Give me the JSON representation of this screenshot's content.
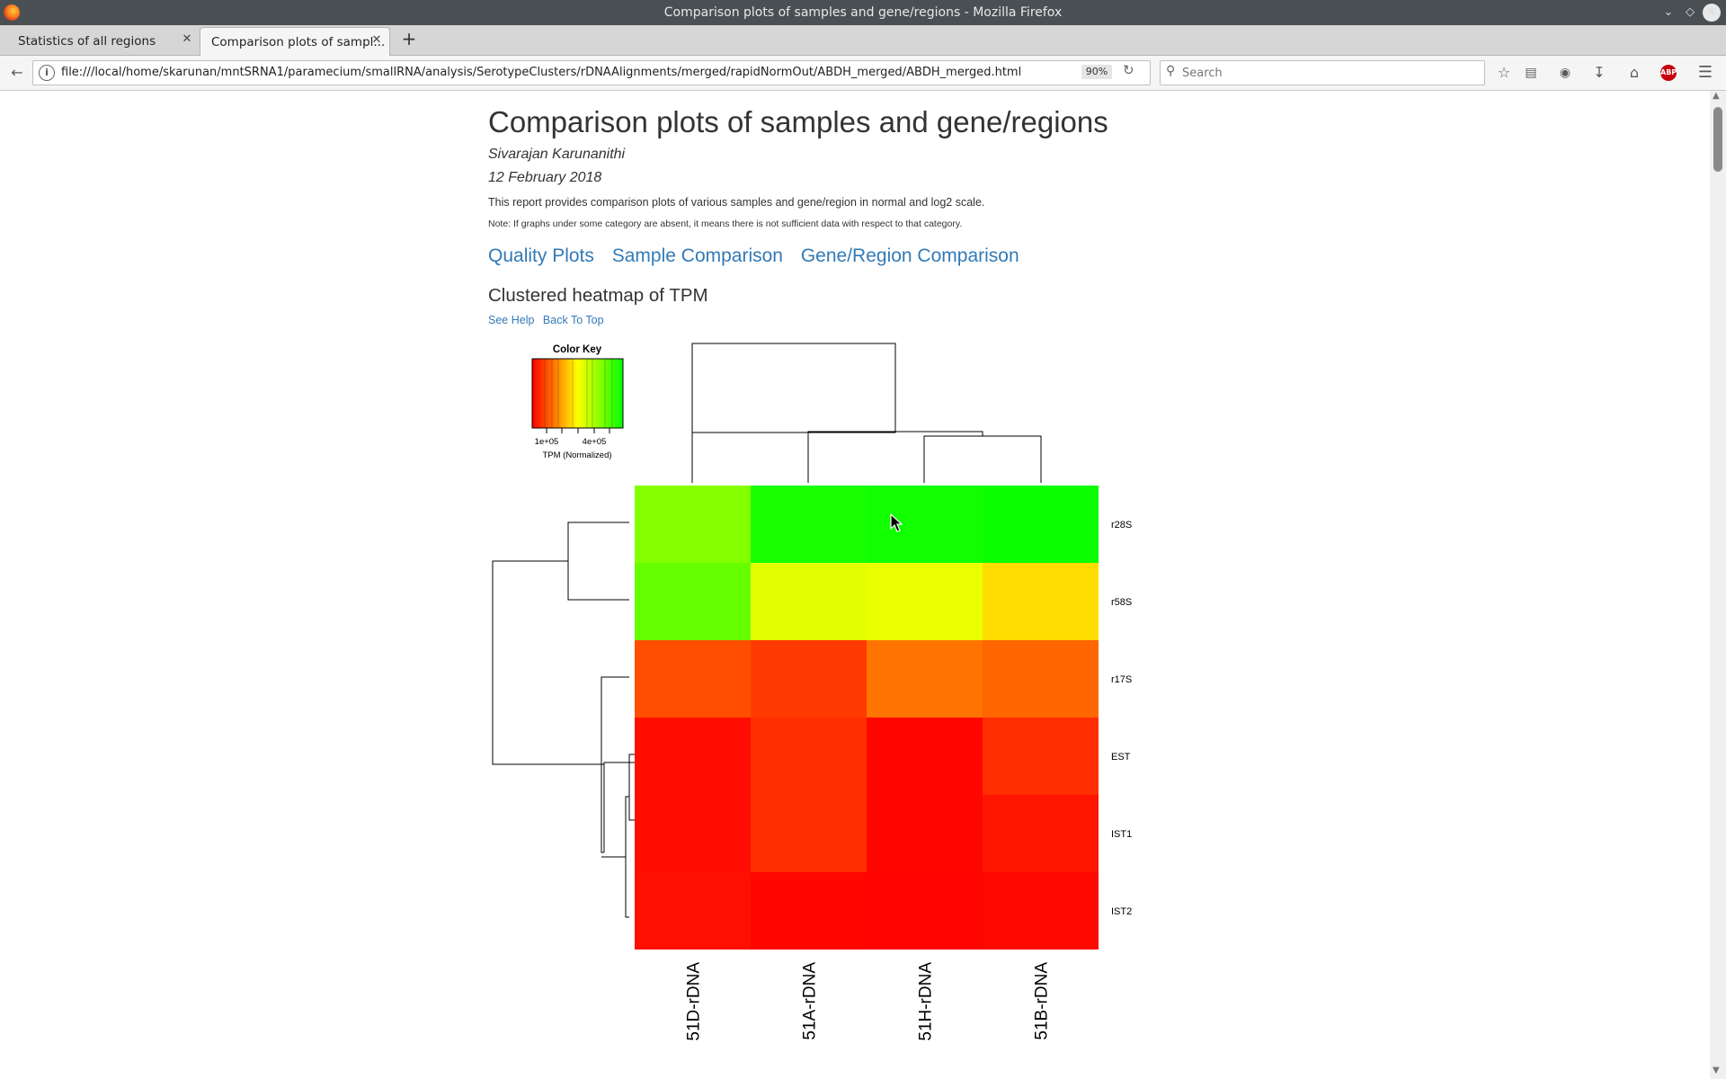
{
  "window": {
    "title": "Comparison plots of samples and gene/regions - Mozilla Firefox"
  },
  "tabs": [
    {
      "label": "Statistics of all regions",
      "active": false
    },
    {
      "label": "Comparison plots of sampl...",
      "active": true
    }
  ],
  "navbar": {
    "url": "file:///local/home/skarunan/mntSRNA1/paramecium/smallRNA/analysis/SerotypeClusters/rDNAAlignments/merged/rapidNormOut/ABDH_merged/ABDH_merged.html",
    "zoom": "90%",
    "search_placeholder": "Search"
  },
  "page": {
    "title": "Comparison plots of samples and gene/regions",
    "author": "Sivarajan Karunanithi",
    "date": "12 February 2018",
    "description": "This report provides comparison plots of various samples and gene/region in normal and log2 scale.",
    "note": "Note: If graphs under some category are absent, it means there is not sufficient data with respect to that category.",
    "nav_links": [
      "Quality Plots",
      "Sample Comparison",
      "Gene/Region Comparison"
    ],
    "section_title": "Clustered heatmap of TPM",
    "help_link": "See Help",
    "top_link": "Back To Top"
  },
  "heatmap": {
    "color_key": {
      "title": "Color Key",
      "tick_labels": [
        "1e+05",
        "4e+05"
      ],
      "label": "TPM (Normalized)"
    },
    "columns": [
      "51D-rDNA",
      "51A-rDNA",
      "51H-rDNA",
      "51B-rDNA"
    ],
    "rows": [
      "r28S",
      "r58S",
      "r17S",
      "EST",
      "IST1",
      "IST2"
    ],
    "cell_colors": [
      [
        "#84ff00",
        "#18ff00",
        "#12ff00",
        "#0cff00"
      ],
      [
        "#66ff00",
        "#e4ff00",
        "#eaff00",
        "#ffdd00"
      ],
      [
        "#ff4e00",
        "#ff3a00",
        "#ff7400",
        "#ff6600"
      ],
      [
        "#ff0d00",
        "#ff2e00",
        "#ff0600",
        "#ff2e00"
      ],
      [
        "#ff0d00",
        "#ff2e00",
        "#ff0600",
        "#ff1500"
      ],
      [
        "#ff0f00",
        "#ff0600",
        "#ff0400",
        "#ff0800"
      ]
    ]
  }
}
